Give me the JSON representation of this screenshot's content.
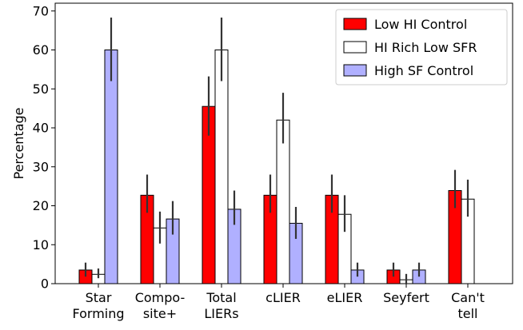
{
  "chart_data": {
    "type": "bar",
    "categories": [
      [
        "Star",
        "Forming"
      ],
      [
        "Compo-",
        "site+"
      ],
      [
        "Total",
        "LIERs"
      ],
      [
        "cLIER"
      ],
      [
        "eLIER"
      ],
      [
        "Seyfert"
      ],
      [
        "Can't",
        "tell"
      ]
    ],
    "series": [
      {
        "name": "Low HI Control",
        "color": "#ff0000",
        "values": [
          3.5,
          22.7,
          45.5,
          22.7,
          22.7,
          3.5,
          23.9
        ],
        "err_low": [
          1.7,
          4.5,
          7.5,
          4.5,
          4.5,
          1.7,
          4.5
        ],
        "err_high": [
          1.9,
          5.3,
          7.7,
          5.3,
          5.3,
          1.9,
          5.3
        ]
      },
      {
        "name": "HI Rich Low SFR",
        "color": "#ffffff",
        "values": [
          2.4,
          14.3,
          60.0,
          42.0,
          17.8,
          1.0,
          21.7
        ],
        "err_low": [
          1.0,
          4.0,
          8.0,
          6.0,
          4.5,
          1.0,
          4.5
        ],
        "err_high": [
          1.5,
          4.2,
          8.3,
          7.0,
          4.9,
          1.5,
          5.0
        ]
      },
      {
        "name": "High SF Control",
        "color": "#b0b0ff",
        "values": [
          60.0,
          16.6,
          19.1,
          15.5,
          3.5,
          3.5,
          null
        ],
        "err_low": [
          8.0,
          4.0,
          4.0,
          4.0,
          1.7,
          1.7,
          null
        ],
        "err_high": [
          8.3,
          4.6,
          4.8,
          4.2,
          1.9,
          1.9,
          null
        ]
      }
    ],
    "xlabel": "",
    "ylabel": "Percentage",
    "ylim": [
      0,
      72
    ],
    "yticks": [
      0,
      10,
      20,
      30,
      40,
      50,
      60,
      70
    ],
    "grid": false,
    "legend_position": "upper-right"
  }
}
